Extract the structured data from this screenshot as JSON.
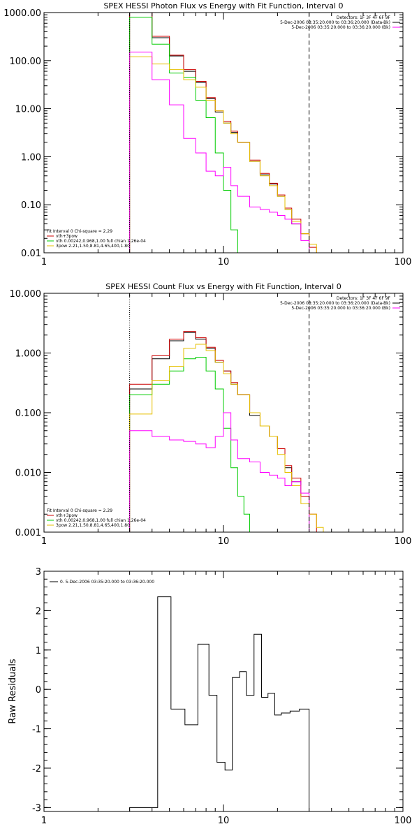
{
  "chart_data": [
    {
      "type": "line",
      "title": "SPEX HESSI Photon Flux vs Energy with Fit Function, Interval 0",
      "xscale": "log",
      "yscale": "log",
      "xlim": [
        1,
        100
      ],
      "ylim": [
        0.01,
        1000
      ],
      "xticks": [
        1,
        10,
        100
      ],
      "xtick_labels": [
        "1",
        "10",
        "100"
      ],
      "yticks": [
        0.01,
        0.1,
        1,
        10,
        100,
        1000
      ],
      "ytick_labels": [
        "0.01",
        "0.10",
        "1.00",
        "10.00",
        "100.00",
        "1000.00"
      ],
      "vlines": [
        {
          "x": 3,
          "style": "dotted"
        },
        {
          "x": 30,
          "style": "dashed"
        }
      ],
      "legend_topright": [
        {
          "text": "Detectors: 1F 3F 4F 6F 9F",
          "color": "none"
        },
        {
          "text": "5-Dec-2006 03:35:20.000 to 03:36:20.000 (Data-Bk)",
          "color": "#000000"
        },
        {
          "text": "5-Dec-2006 03:35:20.000 to 03:36:20.000 (Bk)",
          "color": "#ff00ff"
        }
      ],
      "legend_bottomleft": [
        {
          "text": "Fit Interval 0   Chi-square = 2.29",
          "color": "none"
        },
        {
          "text": "vth+3pow",
          "color": "#cc0000"
        },
        {
          "text": "vth 0.00242,0.968,1.00   full chian 1.26e-04",
          "color": "#00cc00"
        },
        {
          "text": "3pow 2.21,1.50,8.81,4.65,400,1.80",
          "color": "#e6c000"
        }
      ],
      "series": [
        {
          "color": "#000000",
          "edges": [
            3,
            4,
            5,
            6,
            7,
            8,
            9,
            10,
            11,
            12,
            14,
            16,
            18,
            20,
            22,
            24,
            27,
            30
          ],
          "values": [
            1000,
            300,
            125,
            60,
            35,
            16,
            8.5,
            5,
            3.2,
            2,
            0.8,
            0.42,
            0.27,
            0.15,
            0.08,
            0.04,
            0.025
          ]
        },
        {
          "color": "#cc0000",
          "edges": [
            3,
            4,
            5,
            6,
            7,
            8,
            9,
            10,
            11,
            12,
            14,
            16,
            18,
            20,
            22,
            24,
            27,
            30,
            33
          ],
          "values": [
            1000,
            320,
            130,
            65,
            37,
            17,
            9,
            5.5,
            3.4,
            2,
            0.85,
            0.45,
            0.28,
            0.16,
            0.085,
            0.05,
            0.025,
            0.013
          ]
        },
        {
          "color": "#00cc00",
          "edges": [
            3,
            4,
            5,
            6,
            7,
            8,
            9,
            10,
            11,
            12,
            13
          ],
          "values": [
            800,
            220,
            55,
            45,
            15,
            6.5,
            1.2,
            0.2,
            0.03,
            0.01
          ]
        },
        {
          "color": "#e6c000",
          "edges": [
            3,
            4,
            5,
            6,
            7,
            8,
            9,
            10,
            11,
            12,
            14,
            16,
            18,
            20,
            22,
            24,
            27,
            30,
            33,
            36,
            40
          ],
          "values": [
            120,
            85,
            65,
            40,
            28,
            15,
            9,
            5,
            3,
            2,
            0.8,
            0.4,
            0.25,
            0.15,
            0.08,
            0.045,
            0.025,
            0.015,
            0.01,
            0.01
          ]
        },
        {
          "color": "#ff00ff",
          "edges": [
            3,
            4,
            5,
            6,
            7,
            8,
            9,
            10,
            11,
            12,
            14,
            16,
            18,
            20,
            22,
            24,
            27,
            30
          ],
          "values": [
            150,
            40,
            12,
            2.4,
            1.2,
            0.5,
            0.4,
            0.6,
            0.25,
            0.15,
            0.09,
            0.08,
            0.07,
            0.06,
            0.05,
            0.04,
            0.018
          ]
        }
      ]
    },
    {
      "type": "line",
      "title": "SPEX HESSI Count Flux vs Energy with Fit Function, Interval 0",
      "xscale": "log",
      "yscale": "log",
      "xlim": [
        1,
        100
      ],
      "ylim": [
        0.001,
        10
      ],
      "xticks": [
        1,
        10,
        100
      ],
      "xtick_labels": [
        "1",
        "10",
        "100"
      ],
      "yticks": [
        0.001,
        0.01,
        0.1,
        1,
        10
      ],
      "ytick_labels": [
        "0.001",
        "0.010",
        "0.100",
        "1.000",
        "10.000"
      ],
      "vlines": [
        {
          "x": 3,
          "style": "dotted"
        },
        {
          "x": 30,
          "style": "dashed"
        }
      ],
      "legend_topright": [
        {
          "text": "Detectors: 1F 3F 4F 6F 9F",
          "color": "none"
        },
        {
          "text": "5-Dec-2006 03:35:20.000 to 03:36:20.000 (Data-Bk)",
          "color": "#000000"
        },
        {
          "text": "5-Dec-2006 03:35:20.000 to 03:36:20.000 (Bk)",
          "color": "#ff00ff"
        }
      ],
      "legend_bottomleft": [
        {
          "text": "Fit Interval 0   Chi-square = 2.29",
          "color": "none"
        },
        {
          "text": "vth+3pow",
          "color": "#cc0000"
        },
        {
          "text": "vth 0.00242,0.968,1.00   full chian 1.26e-04",
          "color": "#00cc00"
        },
        {
          "text": "3pow 2.21,1.50,8.81,4.65,400,1.80",
          "color": "#e6c000"
        }
      ],
      "series": [
        {
          "color": "#000000",
          "edges": [
            3,
            4,
            5,
            6,
            7,
            8,
            9,
            10,
            11,
            12,
            14,
            16,
            18,
            20,
            22,
            24,
            27,
            30
          ],
          "values": [
            0.25,
            0.8,
            1.6,
            2.2,
            1.7,
            1.2,
            0.7,
            0.5,
            0.3,
            0.2,
            0.09,
            0.06,
            0.04,
            0.025,
            0.012,
            0.007,
            0.004
          ]
        },
        {
          "color": "#cc0000",
          "edges": [
            3,
            4,
            5,
            6,
            7,
            8,
            9,
            10,
            11,
            12,
            14,
            16,
            18,
            20,
            22,
            24,
            27,
            30,
            33
          ],
          "values": [
            0.3,
            0.9,
            1.7,
            2.3,
            1.8,
            1.25,
            0.75,
            0.5,
            0.32,
            0.2,
            0.1,
            0.06,
            0.04,
            0.025,
            0.013,
            0.008,
            0.004,
            0.002
          ]
        },
        {
          "color": "#00cc00",
          "edges": [
            3,
            4,
            5,
            6,
            7,
            8,
            9,
            10,
            11,
            12,
            13,
            14
          ],
          "values": [
            0.2,
            0.3,
            0.5,
            0.8,
            0.85,
            0.5,
            0.25,
            0.055,
            0.012,
            0.004,
            0.002
          ]
        },
        {
          "color": "#e6c000",
          "edges": [
            3,
            4,
            5,
            6,
            7,
            8,
            9,
            10,
            11,
            12,
            14,
            16,
            18,
            20,
            22,
            24,
            27,
            30,
            33,
            36,
            40
          ],
          "values": [
            0.095,
            0.35,
            0.6,
            1.2,
            1.4,
            1.1,
            0.7,
            0.45,
            0.3,
            0.2,
            0.1,
            0.06,
            0.04,
            0.02,
            0.01,
            0.006,
            0.003,
            0.002,
            0.0012,
            0.001
          ]
        },
        {
          "color": "#ff00ff",
          "edges": [
            3,
            4,
            5,
            6,
            7,
            8,
            9,
            10,
            11,
            12,
            14,
            16,
            18,
            20,
            22,
            24,
            27,
            30
          ],
          "values": [
            0.05,
            0.04,
            0.035,
            0.033,
            0.03,
            0.026,
            0.04,
            0.1,
            0.035,
            0.017,
            0.015,
            0.01,
            0.009,
            0.008,
            0.006,
            0.007,
            0.0045
          ]
        }
      ]
    },
    {
      "type": "line",
      "title": "",
      "ylabel": "Raw Residuals",
      "xscale": "log",
      "yscale": "linear",
      "xlim": [
        1,
        100
      ],
      "ylim": [
        -3.1,
        3
      ],
      "xticks": [
        1,
        10,
        100
      ],
      "xtick_labels": [
        "1",
        "10",
        "100"
      ],
      "yticks": [
        -3,
        -2,
        -1,
        0,
        1,
        2,
        3
      ],
      "ytick_labels": [
        "-3",
        "-2",
        "-1",
        "0",
        "1",
        "2",
        "3"
      ],
      "legend_topright": [],
      "legend_bottomleft": [],
      "legend_topleft": [
        {
          "text": "0.  5-Dec-2006 03:35:20.000 to 03:36:20.000",
          "color": "#000000"
        }
      ],
      "series": [
        {
          "color": "#000000",
          "edges": [
            3,
            4.3,
            5.1,
            6.1,
            7.2,
            8.3,
            9.2,
            10.2,
            11.2,
            12.3,
            13.4,
            14.8,
            16.3,
            17.7,
            19.3,
            21,
            23.5,
            26.5,
            30
          ],
          "values": [
            -3,
            2.35,
            -0.5,
            -0.9,
            1.15,
            -0.15,
            -1.85,
            -2.05,
            0.3,
            0.45,
            -0.15,
            1.4,
            -0.2,
            -0.1,
            -0.65,
            -0.6,
            -0.55,
            -0.5
          ]
        }
      ]
    }
  ]
}
